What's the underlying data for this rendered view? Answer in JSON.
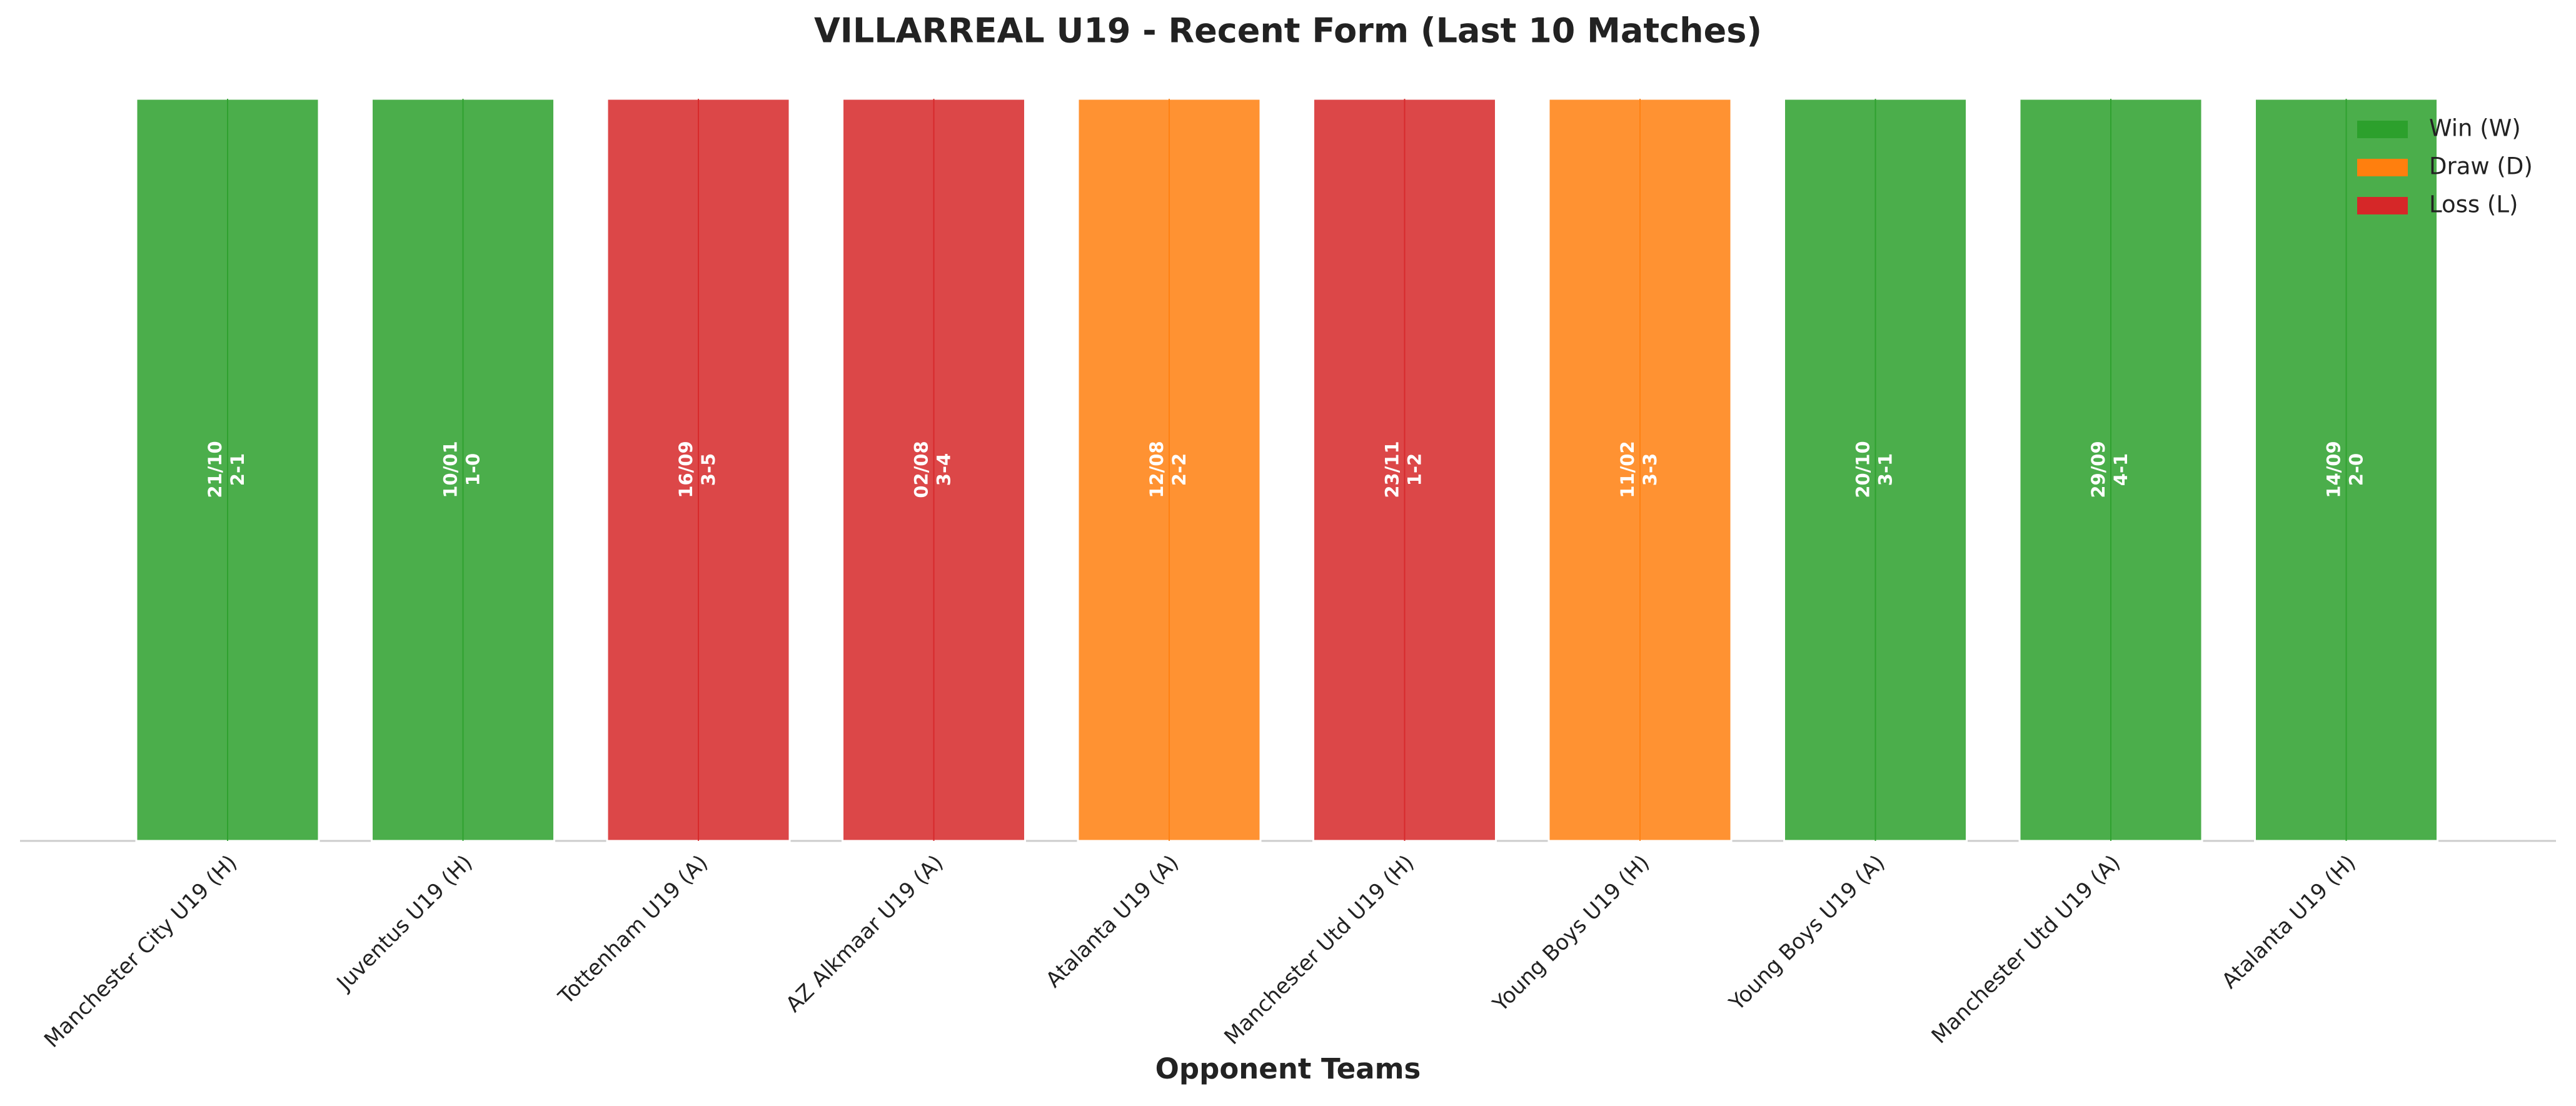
{
  "chart_data": {
    "type": "bar",
    "title": "VILLARREAL U19 - Recent Form (Last 10 Matches)",
    "xlabel": "Opponent Teams",
    "categories": [
      "Manchester City U19 (H)",
      "Juventus U19 (H)",
      "Tottenham U19 (A)",
      "AZ Alkmaar U19 (A)",
      "Atalanta U19 (A)",
      "Manchester Utd U19 (H)",
      "Young Boys U19 (H)",
      "Young Boys U19 (A)",
      "Manchester Utd U19 (A)",
      "Atalanta U19 (H)"
    ],
    "dates": [
      "21/10",
      "10/01",
      "16/09",
      "02/08",
      "12/08",
      "23/11",
      "11/02",
      "20/10",
      "29/09",
      "14/09"
    ],
    "scores": [
      "2-1",
      "1-0",
      "3-5",
      "3-4",
      "2-2",
      "1-2",
      "3-3",
      "3-1",
      "4-1",
      "2-0"
    ],
    "results": [
      "W",
      "W",
      "L",
      "L",
      "D",
      "L",
      "D",
      "W",
      "W",
      "W"
    ],
    "legend": [
      {
        "key": "W",
        "name": "Win (W)",
        "color": "#2ca02c"
      },
      {
        "key": "D",
        "name": "Draw (D)",
        "color": "#ff7f0e"
      },
      {
        "key": "L",
        "name": "Loss (L)",
        "color": "#d62728"
      }
    ],
    "legend_position": "upper right"
  }
}
